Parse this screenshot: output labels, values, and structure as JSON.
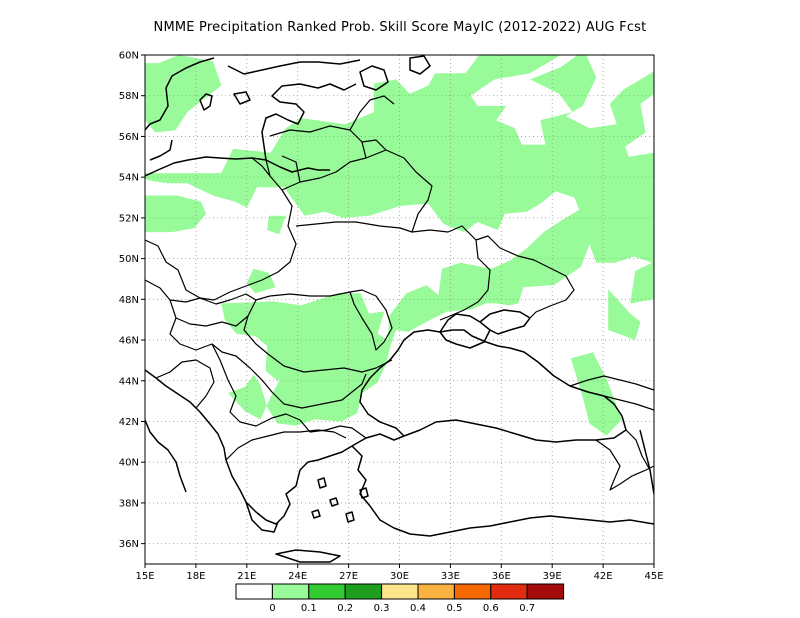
{
  "title": "NMME  Precipitation Ranked Prob. Skill Score MayIC (2012-2022) AUG Fcst",
  "map": {
    "lon_range": [
      15,
      45
    ],
    "lat_range": [
      35,
      60
    ],
    "x_ticks": [
      {
        "lon": 15,
        "label": "15E"
      },
      {
        "lon": 18,
        "label": "18E"
      },
      {
        "lon": 21,
        "label": "21E"
      },
      {
        "lon": 24,
        "label": "24E"
      },
      {
        "lon": 27,
        "label": "27E"
      },
      {
        "lon": 30,
        "label": "30E"
      },
      {
        "lon": 33,
        "label": "33E"
      },
      {
        "lon": 36,
        "label": "36E"
      },
      {
        "lon": 39,
        "label": "39E"
      },
      {
        "lon": 42,
        "label": "42E"
      },
      {
        "lon": 45,
        "label": "45E"
      }
    ],
    "y_ticks": [
      {
        "lat": 36,
        "label": "36N"
      },
      {
        "lat": 38,
        "label": "38N"
      },
      {
        "lat": 40,
        "label": "40N"
      },
      {
        "lat": 42,
        "label": "42N"
      },
      {
        "lat": 44,
        "label": "44N"
      },
      {
        "lat": 46,
        "label": "46N"
      },
      {
        "lat": 48,
        "label": "48N"
      },
      {
        "lat": 50,
        "label": "50N"
      },
      {
        "lat": 52,
        "label": "52N"
      },
      {
        "lat": 54,
        "label": "54N"
      },
      {
        "lat": 56,
        "label": "56N"
      },
      {
        "lat": 58,
        "label": "58N"
      },
      {
        "lat": 60,
        "label": "60N"
      }
    ],
    "gridlines": true,
    "skill_color": "#98fa98",
    "skill_regions": [
      [
        [
          15,
          59.6
        ],
        [
          15.8,
          59.6
        ],
        [
          17,
          60
        ],
        [
          19,
          59.7
        ],
        [
          19.5,
          58.5
        ],
        [
          17.5,
          57.2
        ],
        [
          16.8,
          56.3
        ],
        [
          15.6,
          56.2
        ],
        [
          15,
          56.8
        ]
      ],
      [
        [
          22.3,
          52.1
        ],
        [
          23.3,
          52.1
        ],
        [
          22.9,
          51.2
        ],
        [
          22.2,
          51.4
        ]
      ],
      [
        [
          15,
          54.2
        ],
        [
          19.5,
          54.2
        ],
        [
          20.2,
          55.4
        ],
        [
          22.4,
          55.2
        ],
        [
          23.3,
          56.4
        ],
        [
          24.2,
          56.9
        ],
        [
          26.8,
          56.6
        ],
        [
          28.5,
          57.2
        ],
        [
          28.5,
          58.6
        ],
        [
          29.8,
          58.8
        ],
        [
          30.6,
          58.1
        ],
        [
          31.7,
          58.5
        ],
        [
          32.1,
          59.1
        ],
        [
          33.9,
          59.1
        ],
        [
          34.7,
          60
        ],
        [
          39.5,
          60
        ],
        [
          37.7,
          59.1
        ],
        [
          35.6,
          58.8
        ],
        [
          34.2,
          58
        ],
        [
          34.6,
          57.5
        ],
        [
          36.3,
          57.5
        ],
        [
          35.7,
          56.8
        ],
        [
          36.8,
          56.4
        ],
        [
          37.2,
          55.6
        ],
        [
          38.6,
          55.6
        ],
        [
          38.3,
          56.8
        ],
        [
          40.2,
          57.2
        ],
        [
          39.4,
          58.1
        ],
        [
          37.7,
          58.8
        ],
        [
          39.5,
          59.4
        ],
        [
          40.5,
          60
        ],
        [
          41,
          60
        ],
        [
          41.6,
          58.9
        ],
        [
          40.8,
          57.5
        ],
        [
          39.8,
          57
        ],
        [
          41.2,
          56.4
        ],
        [
          42.8,
          56.6
        ],
        [
          42.4,
          57.6
        ],
        [
          43.2,
          58.3
        ],
        [
          45,
          59.2
        ],
        [
          45,
          58.1
        ],
        [
          44.2,
          57.6
        ],
        [
          44.5,
          56.2
        ],
        [
          43.3,
          55.5
        ],
        [
          43.5,
          55
        ],
        [
          45,
          55.2
        ],
        [
          45,
          48
        ],
        [
          43.6,
          47.8
        ],
        [
          43.9,
          49.4
        ],
        [
          44.9,
          49.8
        ],
        [
          43.8,
          50.1
        ],
        [
          42.7,
          49.8
        ],
        [
          41.6,
          49.8
        ],
        [
          41.2,
          50.7
        ],
        [
          40.7,
          49.6
        ],
        [
          39.1,
          48.7
        ],
        [
          37.3,
          48.6
        ],
        [
          37,
          47.8
        ],
        [
          36.5,
          47.7
        ],
        [
          35.7,
          47.8
        ],
        [
          35.1,
          47.8
        ],
        [
          34.2,
          47.5
        ],
        [
          32.8,
          47.4
        ],
        [
          31.6,
          46.9
        ],
        [
          30.5,
          46.4
        ],
        [
          29.8,
          46.5
        ],
        [
          29.5,
          45.8
        ],
        [
          29.2,
          44.8
        ],
        [
          28.7,
          43.9
        ],
        [
          27.8,
          43.4
        ],
        [
          27.5,
          42.4
        ],
        [
          26.6,
          42
        ],
        [
          25,
          42.1
        ],
        [
          23.9,
          41.8
        ],
        [
          22.8,
          41.9
        ],
        [
          22.2,
          42.7
        ],
        [
          21.8,
          43.8
        ],
        [
          21.4,
          44.3
        ],
        [
          20.9,
          43.7
        ],
        [
          19.9,
          43.4
        ],
        [
          20.9,
          42.5
        ],
        [
          21.8,
          42.1
        ],
        [
          22.4,
          43.2
        ],
        [
          23.1,
          44.3
        ],
        [
          23.6,
          45.1
        ],
        [
          24.6,
          46.4
        ],
        [
          25.7,
          47.3
        ],
        [
          27.6,
          46.9
        ],
        [
          29.3,
          46
        ],
        [
          29.4,
          47.2
        ],
        [
          30.4,
          48.3
        ],
        [
          31.6,
          48.7
        ],
        [
          32.3,
          48.2
        ],
        [
          32.5,
          49.5
        ],
        [
          33.6,
          49.8
        ],
        [
          35.4,
          49.5
        ],
        [
          36.5,
          49.9
        ],
        [
          37.5,
          50.5
        ],
        [
          38.5,
          51.3
        ],
        [
          39.6,
          51.9
        ],
        [
          40.6,
          52.4
        ],
        [
          40.3,
          53
        ],
        [
          39.2,
          53.3
        ],
        [
          38.3,
          52.7
        ],
        [
          37.5,
          52.3
        ],
        [
          36.2,
          52.2
        ],
        [
          35.8,
          51.4
        ],
        [
          34.6,
          51.8
        ],
        [
          33.8,
          51.3
        ],
        [
          32.6,
          51.7
        ],
        [
          31.7,
          52.7
        ],
        [
          30.1,
          52.6
        ],
        [
          28.2,
          52.1
        ],
        [
          26.7,
          52
        ],
        [
          25.6,
          52.3
        ],
        [
          24.4,
          52.1
        ],
        [
          23.2,
          53.5
        ],
        [
          21.6,
          53.5
        ],
        [
          21,
          52.5
        ],
        [
          20.3,
          52.8
        ],
        [
          19,
          53.1
        ],
        [
          17.5,
          53.7
        ],
        [
          16.3,
          53.7
        ],
        [
          15.5,
          53.8
        ],
        [
          15,
          53.9
        ]
      ],
      [
        [
          19.5,
          47.8
        ],
        [
          22.6,
          47.9
        ],
        [
          24.2,
          47.7
        ],
        [
          26.4,
          48.3
        ],
        [
          27.7,
          48.3
        ],
        [
          28.2,
          47.3
        ],
        [
          29.1,
          47.4
        ],
        [
          28.6,
          46
        ],
        [
          27.9,
          45.1
        ],
        [
          27.1,
          44.6
        ],
        [
          26.3,
          44.4
        ],
        [
          25.1,
          44.3
        ],
        [
          23.8,
          44.4
        ],
        [
          22.8,
          44
        ],
        [
          22.1,
          44.5
        ],
        [
          22.2,
          45.7
        ],
        [
          21.5,
          46.2
        ],
        [
          20.4,
          46.3
        ],
        [
          19.7,
          47
        ]
      ],
      [
        [
          15,
          51.3
        ],
        [
          16.6,
          51.3
        ],
        [
          17.9,
          51.5
        ],
        [
          18.6,
          52.2
        ],
        [
          18.3,
          52.8
        ],
        [
          16.9,
          53.1
        ],
        [
          15,
          53.1
        ]
      ],
      [
        [
          42.3,
          46.5
        ],
        [
          42.3,
          48.5
        ],
        [
          43.6,
          47.3
        ],
        [
          44.2,
          46.9
        ],
        [
          43.9,
          46
        ]
      ],
      [
        [
          40.1,
          45.1
        ],
        [
          41.4,
          45.4
        ],
        [
          42.2,
          44.1
        ],
        [
          43.1,
          42.1
        ],
        [
          42.2,
          41.3
        ],
        [
          41.2,
          41.9
        ],
        [
          40.8,
          43.2
        ]
      ],
      [
        [
          21.5,
          48.3
        ],
        [
          21,
          48.8
        ],
        [
          21.4,
          49.5
        ],
        [
          22.3,
          49.3
        ],
        [
          22.7,
          48.6
        ]
      ]
    ],
    "colorbar": {
      "colors": [
        "#ffffff",
        "#98fa98",
        "#32cd32",
        "#1e9e1e",
        "#fde68a",
        "#f9b23f",
        "#f56a00",
        "#e22c0f",
        "#a50b0b"
      ],
      "labels": [
        "0",
        "0.1",
        "0.2",
        "0.3",
        "0.4",
        "0.5",
        "0.6",
        "0.7"
      ]
    }
  }
}
